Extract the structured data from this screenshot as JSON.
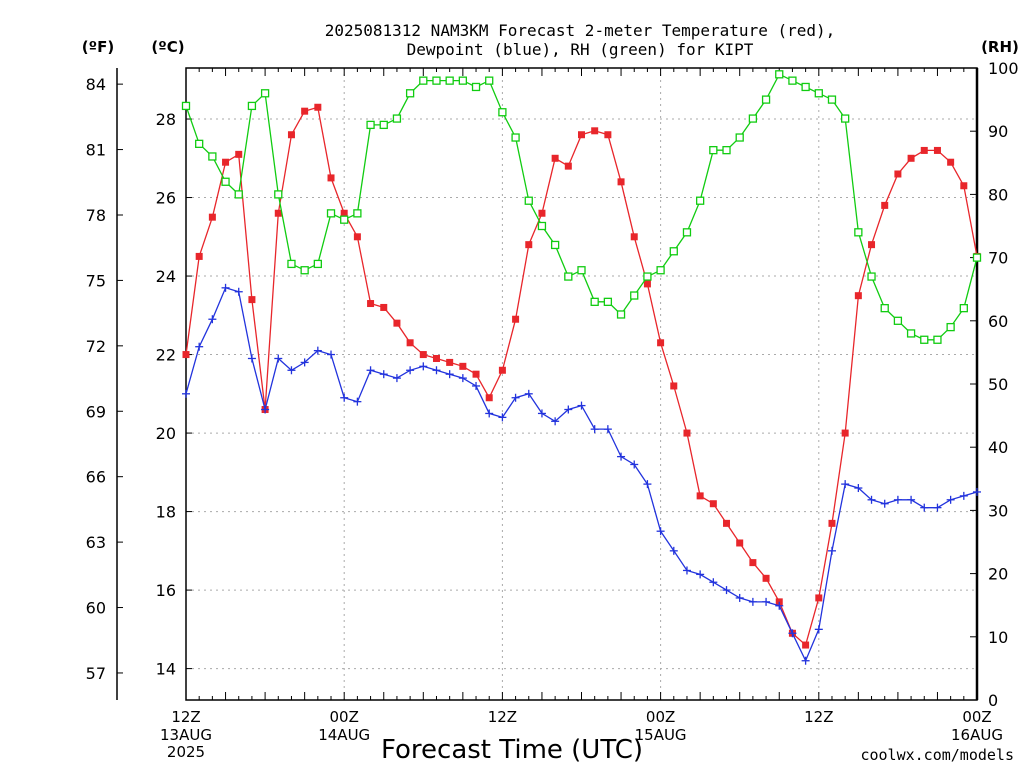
{
  "title_line1": "2025081312 NAM3KM Forecast 2-meter Temperature (red),",
  "title_line2": "Dewpoint (blue), RH (green) for KIPT",
  "unit_f": "(ºF)",
  "unit_c": "(ºC)",
  "unit_rh": "(RH)",
  "xlabel": "Forecast Time (UTC)",
  "credit": "coolwx.com/models",
  "colors": {
    "temperature": "#e8262b",
    "dewpoint": "#2233dd",
    "rh": "#11cc11",
    "grid": "#aaaaaa",
    "credit": "#e8262b"
  },
  "chart_data": {
    "type": "line",
    "x": {
      "units": "hours since 2025-08-13 12Z",
      "range": [
        0,
        60
      ],
      "step": 1
    },
    "x_ticks": [
      {
        "h": 0,
        "label": "12Z",
        "sub1": "13AUG",
        "sub2": "2025"
      },
      {
        "h": 12,
        "label": "00Z",
        "sub1": "14AUG",
        "sub2": ""
      },
      {
        "h": 24,
        "label": "12Z",
        "sub1": "",
        "sub2": ""
      },
      {
        "h": 36,
        "label": "00Z",
        "sub1": "15AUG",
        "sub2": ""
      },
      {
        "h": 48,
        "label": "12Z",
        "sub1": "",
        "sub2": ""
      },
      {
        "h": 60,
        "label": "00Z",
        "sub1": "16AUG",
        "sub2": ""
      }
    ],
    "y_celsius": {
      "range": [
        13.2,
        29.3
      ],
      "ticks": [
        14,
        16,
        18,
        20,
        22,
        24,
        26,
        28
      ]
    },
    "y_fahrenheit": {
      "ticks": [
        57,
        60,
        63,
        66,
        69,
        72,
        75,
        78,
        81,
        84
      ]
    },
    "y_rh": {
      "range": [
        0,
        100
      ],
      "ticks": [
        0,
        10,
        20,
        30,
        40,
        50,
        60,
        70,
        80,
        90,
        100
      ]
    },
    "grid": true,
    "series": [
      {
        "key": "temperature",
        "axis": "celsius",
        "marker": "filled-square",
        "values": [
          22.0,
          24.5,
          25.5,
          26.9,
          27.1,
          23.4,
          20.6,
          25.6,
          27.6,
          28.2,
          28.3,
          26.5,
          25.6,
          25.0,
          23.3,
          23.2,
          22.8,
          22.3,
          22.0,
          21.9,
          21.8,
          21.7,
          21.5,
          20.9,
          21.6,
          22.9,
          24.8,
          25.6,
          27.0,
          26.8,
          27.6,
          27.7,
          27.6,
          26.4,
          25.0,
          23.8,
          22.3,
          21.2,
          20.0,
          18.4,
          18.2,
          17.7,
          17.2,
          16.7,
          16.3,
          15.7,
          14.9,
          14.6,
          15.8,
          17.7,
          20.0,
          23.5,
          24.8,
          25.8,
          26.6,
          27.0,
          27.2,
          27.2,
          26.9,
          26.3,
          24.5
        ]
      },
      {
        "key": "dewpoint",
        "axis": "celsius",
        "marker": "plus",
        "values": [
          21.0,
          22.2,
          22.9,
          23.7,
          23.6,
          21.9,
          20.6,
          21.9,
          21.6,
          21.8,
          22.1,
          22.0,
          20.9,
          20.8,
          21.6,
          21.5,
          21.4,
          21.6,
          21.7,
          21.6,
          21.5,
          21.4,
          21.2,
          20.5,
          20.4,
          20.9,
          21.0,
          20.5,
          20.3,
          20.6,
          20.7,
          20.1,
          20.1,
          19.4,
          19.2,
          18.7,
          17.5,
          17.0,
          16.5,
          16.4,
          16.2,
          16.0,
          15.8,
          15.7,
          15.7,
          15.6,
          14.9,
          14.2,
          15.0,
          17.0,
          18.7,
          18.6,
          18.3,
          18.2,
          18.3,
          18.3,
          18.1,
          18.1,
          18.3,
          18.4,
          18.5
        ]
      },
      {
        "key": "rh",
        "axis": "rh",
        "marker": "open-square",
        "values": [
          94,
          88,
          86,
          82,
          80,
          94,
          96,
          80,
          69,
          68,
          69,
          77,
          76,
          77,
          91,
          91,
          92,
          96,
          98,
          98,
          98,
          98,
          97,
          98,
          93,
          89,
          79,
          75,
          72,
          67,
          68,
          63,
          63,
          61,
          64,
          67,
          68,
          71,
          74,
          79,
          87,
          87,
          89,
          92,
          95,
          99,
          98,
          97,
          96,
          95,
          92,
          74,
          67,
          62,
          60,
          58,
          57,
          57,
          59,
          62,
          70
        ]
      }
    ]
  }
}
